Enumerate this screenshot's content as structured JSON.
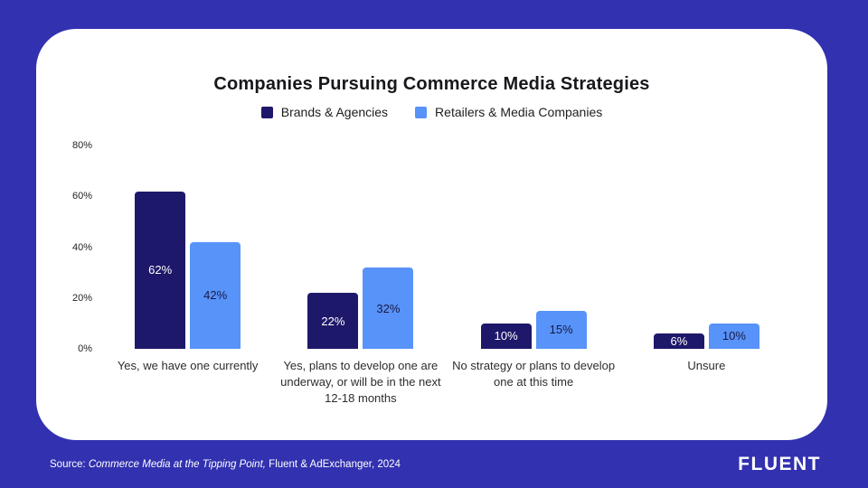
{
  "page": {
    "background_color": "#3231b0",
    "card_background": "#ffffff"
  },
  "chart_data": {
    "type": "bar",
    "title": "Companies Pursuing Commerce Media Strategies",
    "categories": [
      "Yes, we have one currently",
      "Yes, plans to develop one are underway, or will be in the next 12-18 months",
      "No strategy or plans to develop one at this time",
      "Unsure"
    ],
    "series": [
      {
        "name": "Brands & Agencies",
        "color": "#1e186a",
        "label_color": "#ffffff",
        "values": [
          62,
          22,
          10,
          6
        ]
      },
      {
        "name": "Retailers & Media Companies",
        "color": "#5793f8",
        "label_color": "#191947",
        "values": [
          42,
          32,
          15,
          10
        ]
      }
    ],
    "xlabel": "",
    "ylabel": "",
    "ylim": [
      0,
      80
    ],
    "ytick_values": [
      0,
      20,
      40,
      60,
      80
    ],
    "value_suffix": "%",
    "grid": false,
    "legend_position": "top"
  },
  "footer": {
    "source_prefix": "Source: ",
    "source_title": "Commerce Media at the Tipping Point,",
    "source_rest": " Fluent & AdExchanger, 2024",
    "logo": "FLUENT"
  }
}
